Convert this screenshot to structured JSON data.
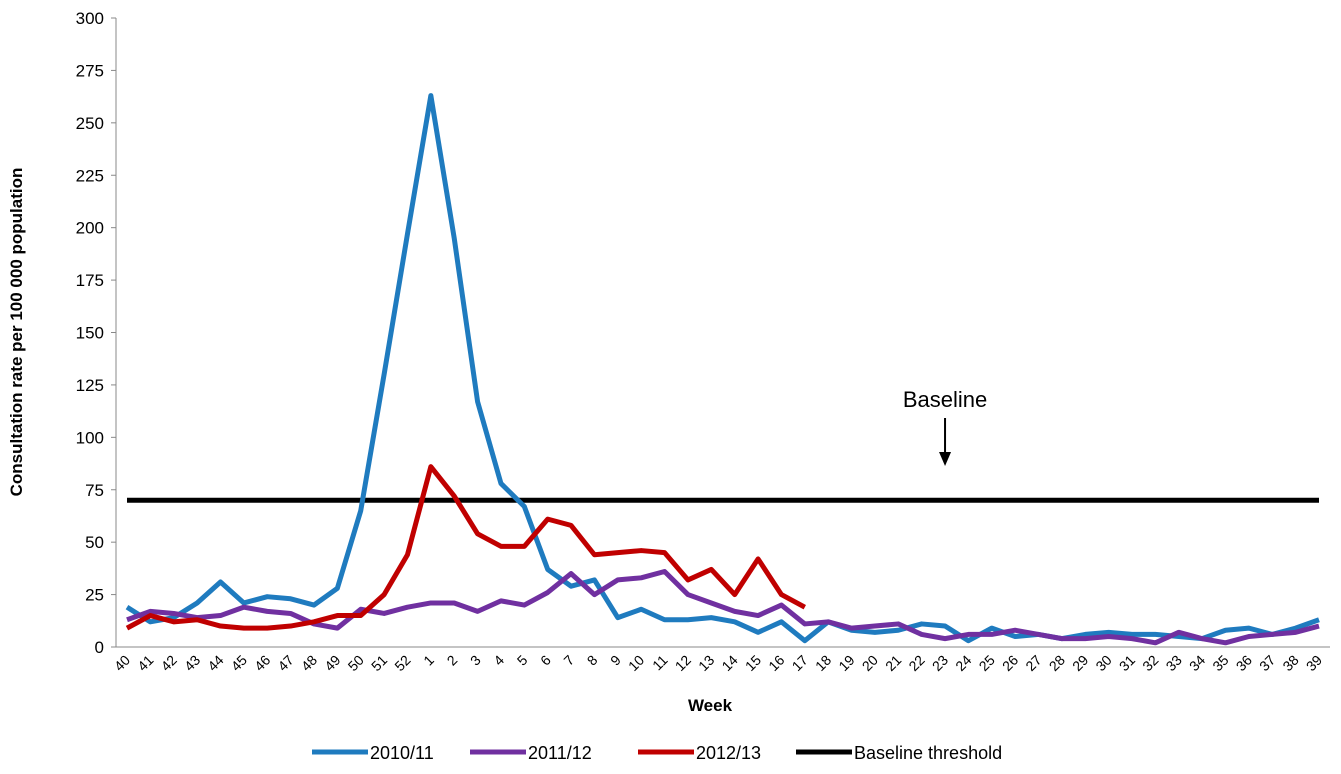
{
  "chart_data": {
    "type": "line",
    "y_label": "Consultation rate per 100 000 population",
    "x_label": "Week",
    "annotation": "Baseline",
    "categories": [
      "40",
      "41",
      "42",
      "43",
      "44",
      "45",
      "46",
      "47",
      "48",
      "49",
      "50",
      "51",
      "52",
      "1",
      "2",
      "3",
      "4",
      "5",
      "6",
      "7",
      "8",
      "9",
      "10",
      "11",
      "12",
      "13",
      "14",
      "15",
      "16",
      "17",
      "18",
      "19",
      "20",
      "21",
      "22",
      "23",
      "24",
      "25",
      "26",
      "27",
      "28",
      "29",
      "30",
      "31",
      "32",
      "33",
      "34",
      "35",
      "36",
      "37",
      "38",
      "39"
    ],
    "series": [
      {
        "name": "2010/11",
        "color": "#1f7bbf",
        "values": [
          19,
          12,
          14,
          21,
          31,
          21,
          24,
          23,
          20,
          28,
          65,
          130,
          197,
          263,
          195,
          117,
          78,
          67,
          37,
          29,
          32,
          14,
          18,
          13,
          13,
          14,
          12,
          7,
          12,
          3,
          12,
          8,
          7,
          8,
          11,
          10,
          3,
          9,
          5,
          6,
          4,
          6,
          7,
          6,
          6,
          5,
          4,
          8,
          9,
          6,
          9,
          13
        ]
      },
      {
        "name": "2011/12",
        "color": "#7030a0",
        "values": [
          13,
          17,
          16,
          14,
          15,
          19,
          17,
          16,
          11,
          9,
          18,
          16,
          19,
          21,
          21,
          17,
          22,
          20,
          26,
          35,
          25,
          32,
          33,
          36,
          25,
          21,
          17,
          15,
          20,
          11,
          12,
          9,
          10,
          11,
          6,
          4,
          6,
          6,
          8,
          6,
          4,
          4,
          5,
          4,
          2,
          7,
          4,
          2,
          5,
          6,
          7,
          10
        ]
      },
      {
        "name": "2012/13",
        "color": "#c00000",
        "values": [
          9,
          15,
          12,
          13,
          10,
          9,
          9,
          10,
          12,
          15,
          15,
          25,
          44,
          86,
          72,
          54,
          48,
          48,
          61,
          58,
          44,
          45,
          46,
          45,
          32,
          37,
          25,
          42,
          25,
          19,
          null,
          null,
          null,
          null,
          null,
          null,
          null,
          null,
          null,
          null,
          null,
          null,
          null,
          null,
          null,
          null,
          null,
          null,
          null,
          null,
          null,
          null
        ]
      },
      {
        "name": "Baseline threshold",
        "color": "#000000",
        "values": [
          70,
          70,
          70,
          70,
          70,
          70,
          70,
          70,
          70,
          70,
          70,
          70,
          70,
          70,
          70,
          70,
          70,
          70,
          70,
          70,
          70,
          70,
          70,
          70,
          70,
          70,
          70,
          70,
          70,
          70,
          70,
          70,
          70,
          70,
          70,
          70,
          70,
          70,
          70,
          70,
          70,
          70,
          70,
          70,
          70,
          70,
          70,
          70,
          70,
          70,
          70,
          70
        ]
      }
    ],
    "annotation_category": "23",
    "ylim": [
      0,
      300
    ],
    "yticks": [
      0,
      25,
      50,
      75,
      100,
      125,
      150,
      175,
      200,
      225,
      250,
      275,
      300
    ]
  }
}
